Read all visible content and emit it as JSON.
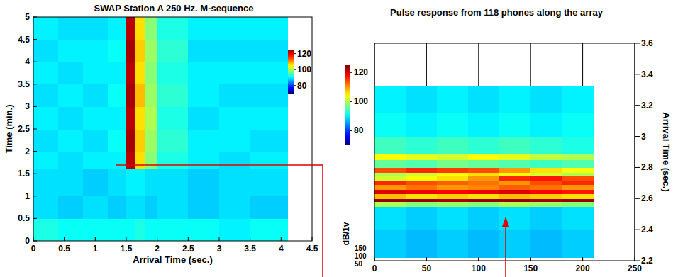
{
  "chart_data": [
    {
      "type": "heatmap",
      "title": "SWAP Station A 250 Hz. M-sequence",
      "x_label": "Arrival Time (sec.)",
      "y_label": "Time (min.)",
      "xlim": [
        0,
        4.5
      ],
      "ylim": [
        0,
        5
      ],
      "xticks": [
        0,
        0.5,
        1,
        1.5,
        2,
        2.5,
        3,
        3.5,
        4,
        4.5
      ],
      "yticks": [
        0,
        0.5,
        1,
        1.5,
        2,
        2.5,
        3,
        3.5,
        4,
        4.5,
        5
      ],
      "x_edges": [
        0,
        0.4,
        0.8,
        1.2,
        1.5,
        1.65,
        1.8,
        2.0,
        2.5,
        3.0,
        3.5,
        4.1
      ],
      "y_edges": [
        0,
        0.5,
        1,
        1.6,
        2,
        2.5,
        3,
        3.5,
        4,
        4.5,
        5
      ],
      "cells": [
        [
          92,
          91,
          91,
          91,
          91,
          92,
          91,
          91,
          91,
          90,
          91
        ],
        [
          89,
          88,
          89,
          88,
          89,
          89,
          88,
          89,
          88,
          89,
          88
        ],
        [
          89,
          89,
          88,
          89,
          90,
          90,
          89,
          89,
          88,
          89,
          89
        ],
        [
          90,
          89,
          90,
          90,
          122,
          106,
          98,
          92,
          90,
          89,
          90
        ],
        [
          89,
          90,
          89,
          91,
          123,
          107,
          99,
          93,
          90,
          90,
          89
        ],
        [
          90,
          89,
          90,
          90,
          122,
          106,
          100,
          92,
          89,
          90,
          90
        ],
        [
          89,
          90,
          89,
          91,
          123,
          108,
          99,
          93,
          90,
          89,
          89
        ],
        [
          90,
          89,
          90,
          90,
          122,
          106,
          98,
          92,
          90,
          90,
          90
        ],
        [
          89,
          90,
          90,
          91,
          123,
          107,
          99,
          93,
          89,
          89,
          89
        ],
        [
          90,
          89,
          89,
          90,
          122,
          106,
          98,
          92,
          90,
          90,
          90
        ]
      ],
      "color_range": [
        70,
        125
      ],
      "color_ticks": [
        80,
        100,
        120
      ]
    },
    {
      "type": "heatmap",
      "title": "Pulse response from 118 phones along the array",
      "y_label": "Arrival Time (sec.)",
      "xlim": [
        0,
        250
      ],
      "ylim": [
        2.2,
        3.6
      ],
      "xticks": [
        0,
        50,
        100,
        150,
        200,
        250
      ],
      "yticks": [
        2.2,
        2.4,
        2.6,
        2.8,
        3,
        3.2,
        3.4,
        3.6
      ],
      "grid": true,
      "x_edges": [
        0,
        30,
        60,
        90,
        120,
        150,
        180,
        210
      ],
      "y_edges": [
        2.22,
        2.4,
        2.55,
        2.58,
        2.6,
        2.63,
        2.66,
        2.69,
        2.72,
        2.75,
        2.77,
        2.8,
        2.85,
        2.89,
        3.0,
        3.15,
        3.32
      ],
      "cells": [
        [
          88,
          87,
          88,
          87,
          88,
          87,
          88
        ],
        [
          89,
          88,
          89,
          88,
          89,
          88,
          89
        ],
        [
          100,
          98,
          99,
          98,
          100,
          99,
          98
        ],
        [
          124,
          124,
          123,
          124,
          124,
          123,
          124
        ],
        [
          108,
          106,
          107,
          106,
          108,
          107,
          106
        ],
        [
          120,
          119,
          118,
          119,
          120,
          118,
          117
        ],
        [
          110,
          112,
          110,
          111,
          113,
          112,
          110
        ],
        [
          116,
          114,
          113,
          112,
          110,
          114,
          116
        ],
        [
          102,
          104,
          106,
          110,
          116,
          117,
          114
        ],
        [
          100,
          102,
          104,
          106,
          104,
          102,
          100
        ],
        [
          114,
          116,
          115,
          114,
          110,
          106,
          104
        ],
        [
          96,
          95,
          97,
          96,
          95,
          94,
          95
        ],
        [
          104,
          103,
          102,
          104,
          103,
          101,
          100
        ],
        [
          94,
          93,
          94,
          93,
          94,
          93,
          92
        ],
        [
          91,
          90,
          91,
          90,
          91,
          90,
          91
        ],
        [
          90,
          89,
          90,
          89,
          90,
          89,
          90
        ]
      ],
      "color_range": [
        70,
        125
      ],
      "color_ticks": [
        80,
        100,
        120
      ],
      "color_label": "dB/1v",
      "color_label_ticks": [
        150,
        100,
        50
      ]
    }
  ]
}
